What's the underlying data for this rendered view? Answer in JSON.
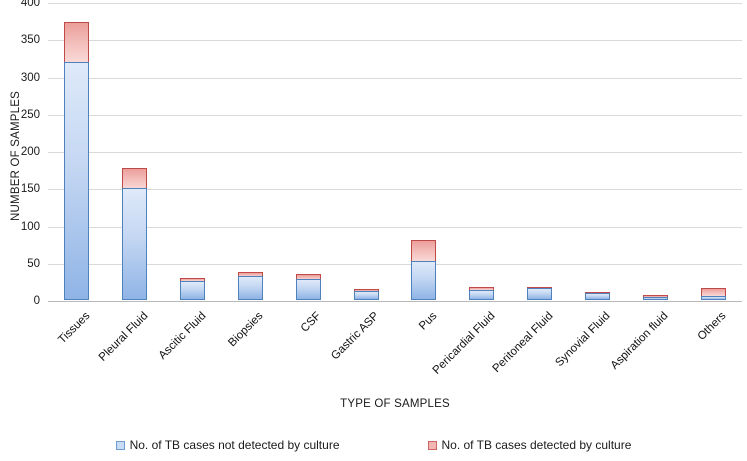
{
  "figure": {
    "y_axis_title": "NUMBER OF SAMPLES",
    "x_axis_title": "TYPE OF SAMPLES"
  },
  "legend": {
    "not_detected_label": "No. of TB cases not detected by culture",
    "detected_label": "No. of TB cases detected by culture"
  },
  "colors": {
    "blue_fill_top": "#dfeafa",
    "blue_fill_bottom": "#8fb4e6",
    "blue_border": "#4f81bd",
    "red_fill_top": "#ec9f9b",
    "red_fill_bottom": "#f8d9d6",
    "red_border": "#bf4a47",
    "gridline": "#d9d9d9",
    "axis_baseline": "#b9b9b9",
    "text": "#1a1a1a"
  },
  "chart_data": {
    "type": "bar",
    "stacked": true,
    "xlabel": "TYPE OF SAMPLES",
    "ylabel": "NUMBER OF SAMPLES",
    "ylim": [
      0,
      400
    ],
    "ytick_step": 50,
    "grid": true,
    "legend_position": "bottom",
    "categories": [
      "Tissues",
      "Pleural Fluid",
      "Ascitic Fluid",
      "Biopsies",
      "CSF",
      "Gastric ASP",
      "Pus",
      "Pericardial Fluid",
      "Peritoneal Fluid",
      "Synovial Fluid",
      "Aspiration fluid",
      "Others"
    ],
    "series": [
      {
        "name": "No. of TB cases not detected by culture",
        "color": "blue",
        "values": [
          320,
          150,
          26,
          32,
          28,
          12,
          53,
          14,
          16,
          9,
          4,
          6
        ]
      },
      {
        "name": "No. of TB cases detected by culture",
        "color": "red",
        "values": [
          55,
          29,
          5,
          8,
          9,
          5,
          29,
          5,
          4,
          4,
          5,
          12
        ]
      }
    ]
  }
}
